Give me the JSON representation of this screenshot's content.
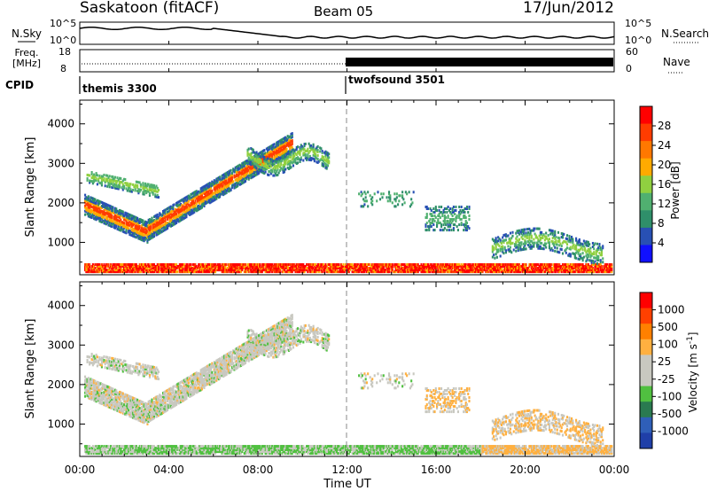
{
  "header": {
    "station": "Saskatoon (fitACF)",
    "beam": "Beam 05",
    "date": "17/Jun/2012"
  },
  "summary_panels": {
    "nsky_label": "N.Sky",
    "nsky_ticks": [
      "10^5",
      "10^0"
    ],
    "nsearch_label": "N.Search",
    "nsearch_ticks": [
      "10^5",
      "10^0"
    ],
    "freq_label_line1": "Freq.",
    "freq_label_line2": "[MHz]",
    "freq_ticks": [
      "18",
      "8"
    ],
    "nave_label": "Nave",
    "nave_ticks": [
      "60",
      "0"
    ],
    "cpid_label": "CPID",
    "cpid_segments": [
      {
        "name": "themis 3300",
        "start_hour": 0
      },
      {
        "name": "twofsound 3501",
        "start_hour": 12
      }
    ]
  },
  "colors": {
    "power_scale": [
      "#1010ff",
      "#2850b4",
      "#2f8f6a",
      "#50b070",
      "#90d040",
      "#ffaa00",
      "#ff7800",
      "#ff3c00",
      "#ff0000"
    ],
    "velocity_scale": [
      "#1f3fa8",
      "#2f5fb8",
      "#2a7a50",
      "#50c040",
      "#c8c8c0",
      "#c8c8c0",
      "#ffb040",
      "#ff8000",
      "#ff4000",
      "#ff0000"
    ]
  },
  "chart_data": [
    {
      "type": "heatmap",
      "parameter": "Power",
      "xlabel": "Time UT",
      "ylabel": "Slant Range [km]",
      "x_range_hours": [
        0,
        24
      ],
      "x_ticks": [
        "00:00",
        "04:00",
        "08:00",
        "12:00",
        "16:00",
        "20:00",
        "00:00"
      ],
      "ylim": [
        180,
        4600
      ],
      "y_ticks": [
        1000,
        2000,
        3000,
        4000
      ],
      "colorbar_label": "Power [dB]",
      "colorbar_ticks": [
        "28",
        "24",
        "20",
        "16",
        "12",
        "8",
        "4"
      ],
      "colorbar_range": [
        0,
        30
      ]
    },
    {
      "type": "heatmap",
      "parameter": "Velocity",
      "xlabel": "Time UT",
      "ylabel": "Slant Range [km]",
      "x_range_hours": [
        0,
        24
      ],
      "x_ticks": [
        "00:00",
        "04:00",
        "08:00",
        "12:00",
        "16:00",
        "20:00",
        "00:00"
      ],
      "ylim": [
        180,
        4600
      ],
      "y_ticks": [
        1000,
        2000,
        3000,
        4000
      ],
      "colorbar_label_base": "Velocity [m s",
      "colorbar_label_exp": "-1",
      "colorbar_label_end": "]",
      "colorbar_ticks": [
        "1000",
        "500",
        "100",
        "25",
        "-25",
        "-100",
        "-500",
        "-1000"
      ]
    }
  ]
}
